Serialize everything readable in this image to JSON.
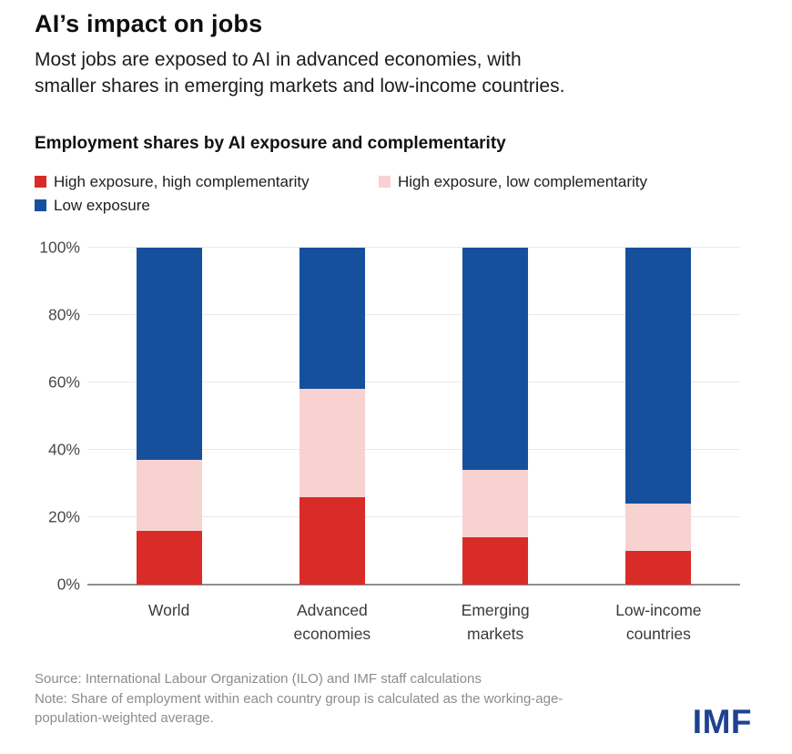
{
  "header": {
    "title": "AI’s impact on jobs",
    "subtitle_line1": "Most jobs are exposed to AI in advanced economies, with",
    "subtitle_line2": "smaller shares in emerging markets and low-income countries."
  },
  "chart_data": {
    "type": "bar",
    "stacked": true,
    "title": "Employment shares by AI exposure and complementarity",
    "categories": [
      "World",
      "Advanced economies",
      "Emerging markets",
      "Low-income countries"
    ],
    "series": [
      {
        "name": "High exposure, high complementarity",
        "color": "#d92b27",
        "values": [
          16,
          26,
          14,
          10
        ]
      },
      {
        "name": "High exposure, low complementarity",
        "color": "#f7d2d1",
        "values": [
          21,
          32,
          20,
          14
        ]
      },
      {
        "name": "Low exposure",
        "color": "#16509d",
        "values": [
          63,
          42,
          66,
          76
        ]
      }
    ],
    "xlabel": "",
    "ylabel": "",
    "ylim": [
      0,
      100
    ],
    "yticks": [
      "0%",
      "20%",
      "40%",
      "60%",
      "80%",
      "100%"
    ],
    "grid": true,
    "legend_position": "top-left"
  },
  "footer": {
    "source": "Source: International Labour Organization (ILO) and IMF staff calculations",
    "note_line1": "Note: Share of employment within each country group is calculated as the working-age-",
    "note_line2": "population-weighted average.",
    "logo": "IMF"
  },
  "colors": {
    "high_exposure_high_complementarity": "#d92b27",
    "high_exposure_low_complementarity": "#f7d2d1",
    "low_exposure": "#16509d",
    "gridline": "#e9e9e9",
    "axis": "#8f8f8f",
    "logo_blue": "#1f4191"
  }
}
